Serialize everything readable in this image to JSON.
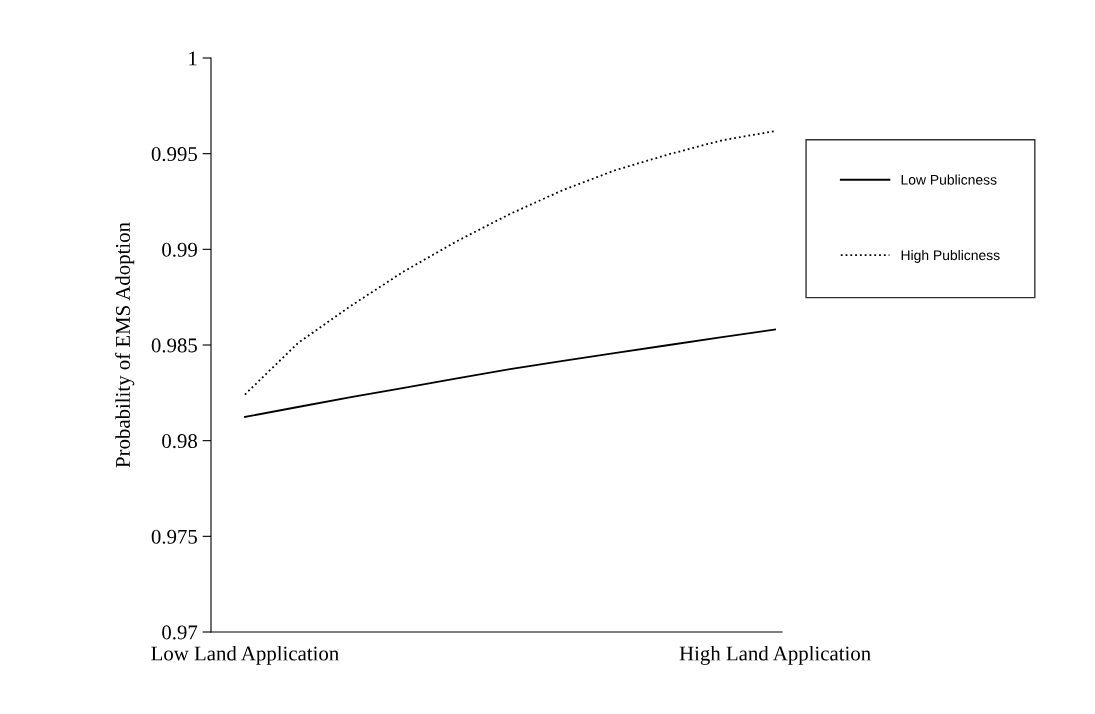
{
  "chart_data": {
    "type": "line",
    "ylabel": "Probability of EMS Adoption",
    "categories": [
      "Low Land Application",
      null,
      null,
      null,
      null,
      null,
      null,
      null,
      null,
      null,
      "High Land Application"
    ],
    "ylim": [
      0.97,
      1
    ],
    "yticks": [
      0.97,
      0.975,
      0.98,
      0.985,
      0.99,
      0.995,
      {
        "value": 1,
        "label": "1"
      }
    ],
    "grid": false,
    "legend": "right",
    "marker": "none",
    "series": [
      {
        "name": "Low Publicness",
        "color": "#000000",
        "line_style": "solid",
        "values": [
          0.98124,
          0.98176,
          0.98227,
          0.98276,
          0.98325,
          0.98374,
          0.98417,
          0.98459,
          0.985,
          0.98541,
          0.98581
        ]
      },
      {
        "name": "High Publicness",
        "color": "#000000",
        "line_style": "dotted",
        "values": [
          0.98241,
          0.9851,
          0.98705,
          0.98885,
          0.99043,
          0.99185,
          0.9931,
          0.99415,
          0.99497,
          0.9957,
          0.99618
        ]
      }
    ]
  }
}
